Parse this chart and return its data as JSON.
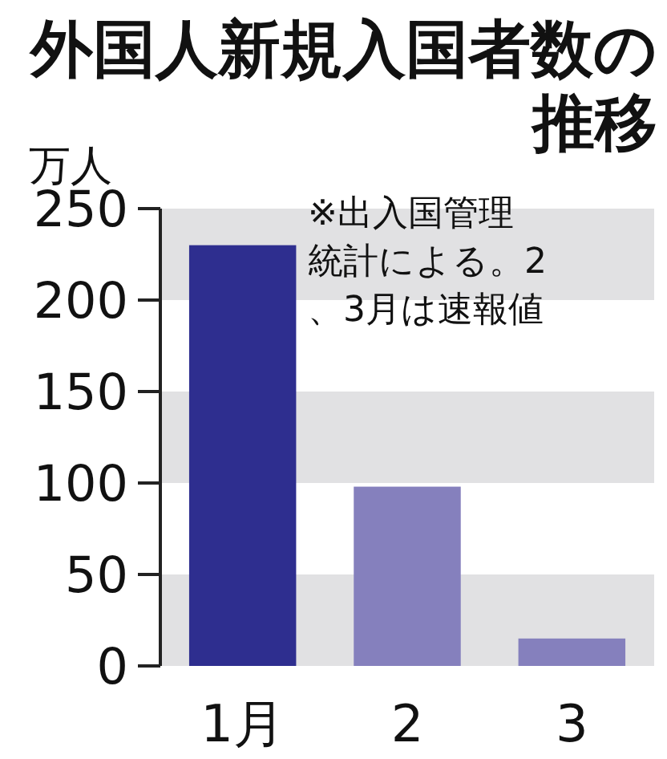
{
  "chart_data": {
    "type": "bar",
    "title": "外国人新規入国者数の推移",
    "ylabel": "万人",
    "categories": [
      "1月",
      "2",
      "3"
    ],
    "values": [
      230,
      98,
      15
    ],
    "colors": [
      "#2e2e8f",
      "#8580bd",
      "#8580bd"
    ],
    "ylim": [
      0,
      250
    ],
    "yticks": [
      0,
      50,
      100,
      150,
      200,
      250
    ],
    "bands": [
      {
        "axis": "y",
        "from": 0,
        "to": 50,
        "color": "#e1e1e3"
      },
      {
        "axis": "y",
        "from": 100,
        "to": 150,
        "color": "#e1e1e3"
      },
      {
        "axis": "y",
        "from": 200,
        "to": 250,
        "color": "#e1e1e3"
      }
    ],
    "annotations": [
      "※出入国管理統計による。2、3月は速報値"
    ]
  }
}
